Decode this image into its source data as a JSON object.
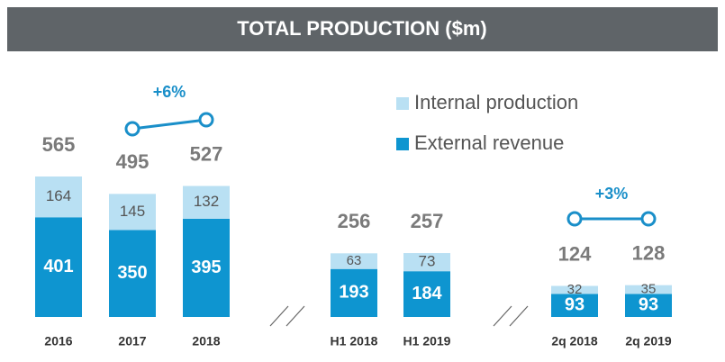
{
  "chart_data": {
    "type": "stacked-bar",
    "title": "TOTAL PRODUCTION ($m)",
    "categories": [
      "2016",
      "2017",
      "2018",
      "H1 2018",
      "H1 2019",
      "2q 2018",
      "2q 2019"
    ],
    "series": [
      {
        "name": "External revenue",
        "color": "#0e95d0",
        "values": [
          401,
          350,
          395,
          193,
          184,
          93,
          93
        ]
      },
      {
        "name": "Internal production",
        "color": "#b9e0f3",
        "values": [
          164,
          145,
          132,
          63,
          73,
          32,
          35
        ]
      }
    ],
    "totals": [
      565,
      495,
      527,
      256,
      257,
      124,
      128
    ],
    "annotations": [
      "+6%",
      "+3%"
    ],
    "legend": "upper-right"
  }
}
